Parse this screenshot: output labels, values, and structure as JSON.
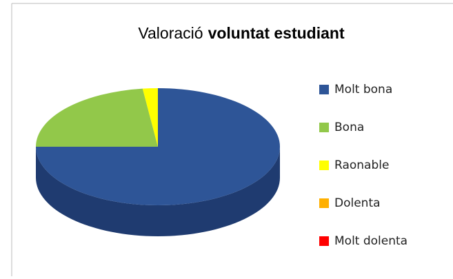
{
  "chart_data": {
    "type": "pie3d",
    "title_parts": [
      "Valoració",
      "voluntat estudiant"
    ],
    "categories": [
      "Molt bona",
      "Bona",
      "Raonable",
      "Dolenta",
      "Molt dolenta"
    ],
    "values": [
      75,
      23,
      2,
      0,
      0
    ],
    "colors": [
      "#2e5597",
      "#92c84a",
      "#ffff00",
      "#ffb000",
      "#ff0000"
    ],
    "side_colors": [
      "#1f3b70",
      "#6e9a33",
      "#c8c800",
      "#c88a00",
      "#c00000"
    ],
    "start_angle": -90,
    "legend": "right"
  }
}
